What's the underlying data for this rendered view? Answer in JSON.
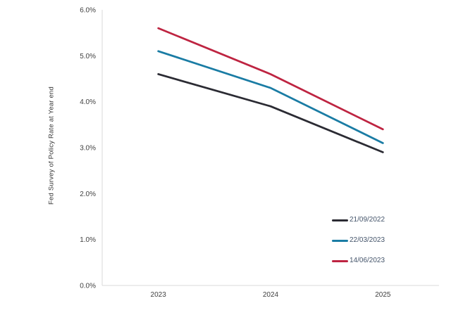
{
  "chart_data": {
    "type": "line",
    "title": "",
    "xlabel": "",
    "ylabel": "Fed Survey of Policy Rate at Year end",
    "categories": [
      "2023",
      "2024",
      "2025"
    ],
    "series": [
      {
        "name": "21/09/2022",
        "color": "#2B2B33",
        "values": [
          4.6,
          3.9,
          2.9
        ]
      },
      {
        "name": "22/03/2023",
        "color": "#1A7CA4",
        "values": [
          5.1,
          4.3,
          3.1
        ]
      },
      {
        "name": "14/06/2023",
        "color": "#BE2441",
        "values": [
          5.6,
          4.6,
          3.4
        ]
      }
    ],
    "y_ticks": [
      {
        "label": "0.0%",
        "value": 0
      },
      {
        "label": "1.0%",
        "value": 1
      },
      {
        "label": "2.0%",
        "value": 2
      },
      {
        "label": "3.0%",
        "value": 3
      },
      {
        "label": "4.0%",
        "value": 4
      },
      {
        "label": "5.0%",
        "value": 5
      },
      {
        "label": "6.0%",
        "value": 6
      }
    ],
    "ylim": [
      0,
      6
    ],
    "grid": false,
    "legend_position": "bottom-right",
    "colors": {
      "axis_line": "#D9D9D9",
      "tick_label": "#404040",
      "legend_text": "#44546A",
      "axis_title_text": "#333333",
      "background": "#FFFFFF"
    }
  }
}
